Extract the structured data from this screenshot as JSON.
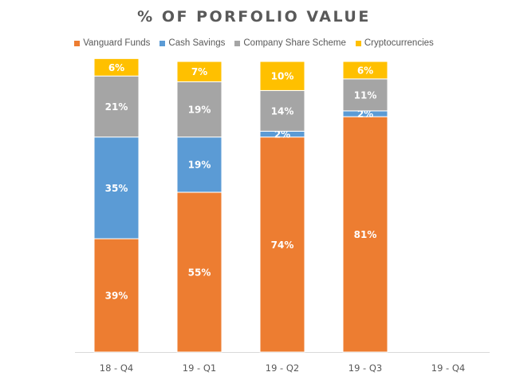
{
  "chart_data": {
    "type": "bar",
    "stacked": true,
    "title": "% OF PORFOLIO VALUE",
    "categories": [
      "18 - Q4",
      "19 - Q1",
      "19 - Q2",
      "19 - Q3",
      "19 - Q4"
    ],
    "series": [
      {
        "name": "Vanguard Funds",
        "color": "#ED7D31",
        "values": [
          39,
          55,
          74,
          81,
          null
        ],
        "labels": [
          "39%",
          "55%",
          "74%",
          "81%",
          ""
        ]
      },
      {
        "name": "Cash Savings",
        "color": "#5B9BD5",
        "values": [
          35,
          19,
          2,
          2,
          null
        ],
        "labels": [
          "35%",
          "19%",
          "2%",
          "2%",
          ""
        ]
      },
      {
        "name": "Company Share Scheme",
        "color": "#A5A5A5",
        "values": [
          21,
          19,
          14,
          11,
          null
        ],
        "labels": [
          "21%",
          "19%",
          "14%",
          "11%",
          ""
        ]
      },
      {
        "name": "Cryptocurrencies",
        "color": "#FFC000",
        "values": [
          6,
          7,
          10,
          6,
          null
        ],
        "labels": [
          "6%",
          "7%",
          "10%",
          "6%",
          ""
        ]
      }
    ],
    "ylim": [
      0,
      100
    ],
    "legend_position": "top",
    "grid": false
  }
}
